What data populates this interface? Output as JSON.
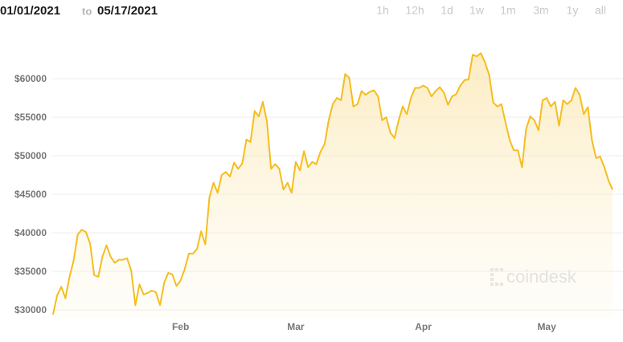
{
  "date_range": {
    "from": "01/01/2021",
    "separator": "to",
    "to": "05/17/2021"
  },
  "range_buttons": [
    "1h",
    "12h",
    "1d",
    "1w",
    "1m",
    "3m",
    "1y",
    "all"
  ],
  "watermark": "coindesk",
  "chart_data": {
    "type": "line",
    "color": "#f5bd1f",
    "x": [
      "2021-01-01",
      "2021-01-02",
      "2021-01-03",
      "2021-01-04",
      "2021-01-05",
      "2021-01-06",
      "2021-01-07",
      "2021-01-08",
      "2021-01-09",
      "2021-01-10",
      "2021-01-11",
      "2021-01-12",
      "2021-01-13",
      "2021-01-14",
      "2021-01-15",
      "2021-01-16",
      "2021-01-17",
      "2021-01-18",
      "2021-01-19",
      "2021-01-20",
      "2021-01-21",
      "2021-01-22",
      "2021-01-23",
      "2021-01-24",
      "2021-01-25",
      "2021-01-26",
      "2021-01-27",
      "2021-01-28",
      "2021-01-29",
      "2021-01-30",
      "2021-01-31",
      "2021-02-01",
      "2021-02-02",
      "2021-02-03",
      "2021-02-04",
      "2021-02-05",
      "2021-02-06",
      "2021-02-07",
      "2021-02-08",
      "2021-02-09",
      "2021-02-10",
      "2021-02-11",
      "2021-02-12",
      "2021-02-13",
      "2021-02-14",
      "2021-02-15",
      "2021-02-16",
      "2021-02-17",
      "2021-02-18",
      "2021-02-19",
      "2021-02-20",
      "2021-02-21",
      "2021-02-22",
      "2021-02-23",
      "2021-02-24",
      "2021-02-25",
      "2021-02-26",
      "2021-02-27",
      "2021-02-28",
      "2021-03-01",
      "2021-03-02",
      "2021-03-03",
      "2021-03-04",
      "2021-03-05",
      "2021-03-06",
      "2021-03-07",
      "2021-03-08",
      "2021-03-09",
      "2021-03-10",
      "2021-03-11",
      "2021-03-12",
      "2021-03-13",
      "2021-03-14",
      "2021-03-15",
      "2021-03-16",
      "2021-03-17",
      "2021-03-18",
      "2021-03-19",
      "2021-03-20",
      "2021-03-21",
      "2021-03-22",
      "2021-03-23",
      "2021-03-24",
      "2021-03-25",
      "2021-03-26",
      "2021-03-27",
      "2021-03-28",
      "2021-03-29",
      "2021-03-30",
      "2021-03-31",
      "2021-04-01",
      "2021-04-02",
      "2021-04-03",
      "2021-04-04",
      "2021-04-05",
      "2021-04-06",
      "2021-04-07",
      "2021-04-08",
      "2021-04-09",
      "2021-04-10",
      "2021-04-11",
      "2021-04-12",
      "2021-04-13",
      "2021-04-14",
      "2021-04-15",
      "2021-04-16",
      "2021-04-17",
      "2021-04-18",
      "2021-04-19",
      "2021-04-20",
      "2021-04-21",
      "2021-04-22",
      "2021-04-23",
      "2021-04-24",
      "2021-04-25",
      "2021-04-26",
      "2021-04-27",
      "2021-04-28",
      "2021-04-29",
      "2021-04-30",
      "2021-05-01",
      "2021-05-02",
      "2021-05-03",
      "2021-05-04",
      "2021-05-05",
      "2021-05-06",
      "2021-05-07",
      "2021-05-08",
      "2021-05-09",
      "2021-05-10",
      "2021-05-11",
      "2021-05-12",
      "2021-05-13",
      "2021-05-14",
      "2021-05-15",
      "2021-05-16",
      "2021-05-17"
    ],
    "values": [
      29400,
      31900,
      33000,
      31500,
      34300,
      36400,
      39800,
      40400,
      40100,
      38600,
      34500,
      34300,
      36900,
      38400,
      36900,
      36100,
      36500,
      36500,
      36700,
      35100,
      30600,
      33300,
      32000,
      32200,
      32500,
      32300,
      30600,
      33500,
      34800,
      34600,
      33100,
      33800,
      35300,
      37300,
      37300,
      37900,
      40200,
      38500,
      44600,
      46500,
      45200,
      47500,
      47900,
      47300,
      49100,
      48300,
      49000,
      52100,
      51800,
      55800,
      55100,
      57000,
      54400,
      48300,
      48900,
      48300,
      45600,
      46500,
      45200,
      49200,
      48100,
      50600,
      48500,
      49200,
      48900,
      50500,
      51500,
      54600,
      56700,
      57500,
      57200,
      60600,
      60100,
      56400,
      56700,
      58400,
      57900,
      58300,
      58500,
      57700,
      54600,
      55000,
      53000,
      52300,
      54600,
      56400,
      55400,
      57500,
      58800,
      58800,
      59100,
      58800,
      57700,
      58400,
      58900,
      58200,
      56600,
      57700,
      58000,
      59100,
      59800,
      59900,
      63100,
      62900,
      63300,
      62100,
      60500,
      56900,
      56400,
      56700,
      54300,
      52000,
      50700,
      50700,
      48500,
      53500,
      55100,
      54600,
      53300,
      57200,
      57500,
      56400,
      57000,
      53900,
      57200,
      56700,
      57200,
      58800,
      57900,
      55400,
      56300,
      52000,
      49700,
      49900,
      48500,
      46800,
      45600
    ],
    "xlim": [
      "2021-01-01",
      "2021-05-17"
    ],
    "xticks": [
      {
        "value": "2021-02-01",
        "label": "Feb"
      },
      {
        "value": "2021-03-01",
        "label": "Mar"
      },
      {
        "value": "2021-04-01",
        "label": "Apr"
      },
      {
        "value": "2021-05-01",
        "label": "May"
      }
    ],
    "ylim": [
      29000,
      65000
    ],
    "yticks": [
      {
        "value": 30000,
        "label": "$30000"
      },
      {
        "value": 35000,
        "label": "$35000"
      },
      {
        "value": 40000,
        "label": "$40000"
      },
      {
        "value": 45000,
        "label": "$45000"
      },
      {
        "value": 50000,
        "label": "$50000"
      },
      {
        "value": 55000,
        "label": "$55000"
      },
      {
        "value": 60000,
        "label": "$60000"
      }
    ],
    "grid": true
  }
}
